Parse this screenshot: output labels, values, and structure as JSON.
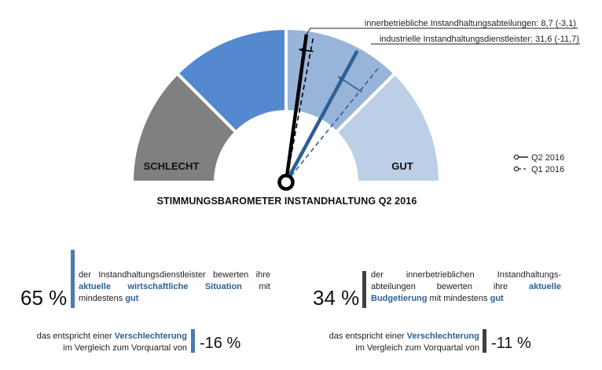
{
  "chart_data": {
    "type": "gauge",
    "title": "STIMMUNGSBAROMETER INSTANDHALTUNG Q2 2016",
    "range": [
      -100,
      100
    ],
    "zones": [
      {
        "label": "SCHLECHT",
        "from": -100,
        "to": -50,
        "color": "#808080"
      },
      {
        "label": "",
        "from": -50,
        "to": 0,
        "color": "#5489d0"
      },
      {
        "label": "",
        "from": 0,
        "to": 50,
        "color": "#98b4d9"
      },
      {
        "label": "GUT",
        "from": 50,
        "to": 100,
        "color": "#bccfe7"
      }
    ],
    "series": [
      {
        "name": "innerbetriebliche Instandhaltungsabteilungen",
        "q2_2016": 8.7,
        "change": -3.1,
        "q1_2016": 11.8,
        "color": "#000000",
        "annotation": "innerbetriebliche Instandhaltungsabteilungen: 8,7 (-3,1)"
      },
      {
        "name": "industrielle Instandhaltungsdienstleister",
        "q2_2016": 31.6,
        "change": -11.7,
        "q1_2016": 43.3,
        "color": "#2e5f95",
        "annotation": "industrielle Instandhaltungsdienstleister: 31,6 (-11,7)"
      }
    ],
    "legend": [
      {
        "label": "Q2 2016",
        "style": "solid"
      },
      {
        "label": "Q1 2016",
        "style": "dashed"
      }
    ]
  },
  "stats": [
    {
      "pct": "65 %",
      "bar_color": "#4a7ab5",
      "text_pre": "der Instandhaltungsdienstleister bewerten ihre ",
      "text_hl": "aktuelle wirtschaftliche Situation",
      "text_mid": " mit mindestens ",
      "text_hl2": "gut",
      "cmp_pre": "das entspricht einer ",
      "cmp_hl": "Verschlechterung",
      "cmp_line2": "im Vergleich zum Vorquartal von",
      "cmp_val": "-16 %"
    },
    {
      "pct": "34 %",
      "bar_color": "#404040",
      "text_pre": "der innerbetrieblichen Instandhaltungs-abteilungen bewerten ihre ",
      "text_hl": "aktuelle Budgetierung",
      "text_mid": " mit mindestens ",
      "text_hl2": "gut",
      "cmp_pre": "das entspricht einer ",
      "cmp_hl": "Verschlechterung",
      "cmp_line2": "im Vergleich zum Vorquartal von",
      "cmp_val": "-11 %"
    }
  ]
}
